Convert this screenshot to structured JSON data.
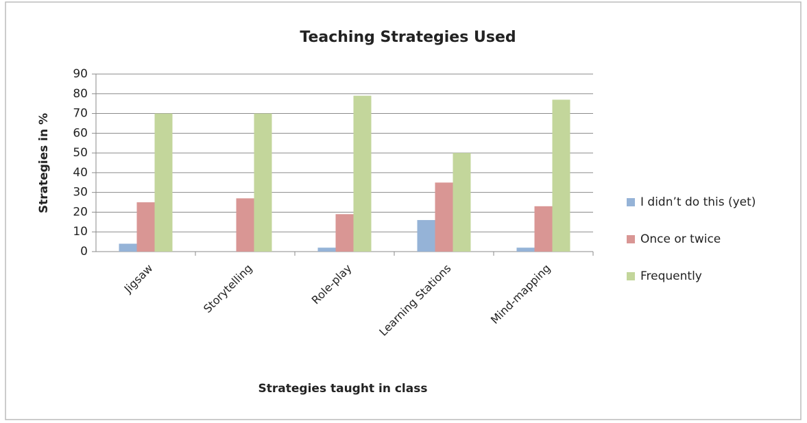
{
  "chart_data": {
    "type": "bar",
    "title": "Teaching Strategies Used",
    "x_label": "Strategies taught in class",
    "y_label": "Strategies in %",
    "categories": [
      "Jigsaw",
      "Storytelling",
      "Role-play",
      "Learning Stations",
      "Mind-mapping"
    ],
    "series": [
      {
        "name": "I didn’t do this (yet)",
        "color": "#95b3d7",
        "values": [
          4,
          0,
          2,
          16,
          2
        ]
      },
      {
        "name": "Once or twice",
        "color": "#d99694",
        "values": [
          25,
          27,
          19,
          35,
          23
        ]
      },
      {
        "name": "Frequently",
        "color": "#c3d69b",
        "values": [
          70,
          70,
          79,
          50,
          77
        ]
      }
    ],
    "ylim": [
      0,
      90
    ],
    "yticks": [
      0,
      10,
      20,
      30,
      40,
      50,
      60,
      70,
      80,
      90
    ],
    "grid": true,
    "legend": "right"
  }
}
